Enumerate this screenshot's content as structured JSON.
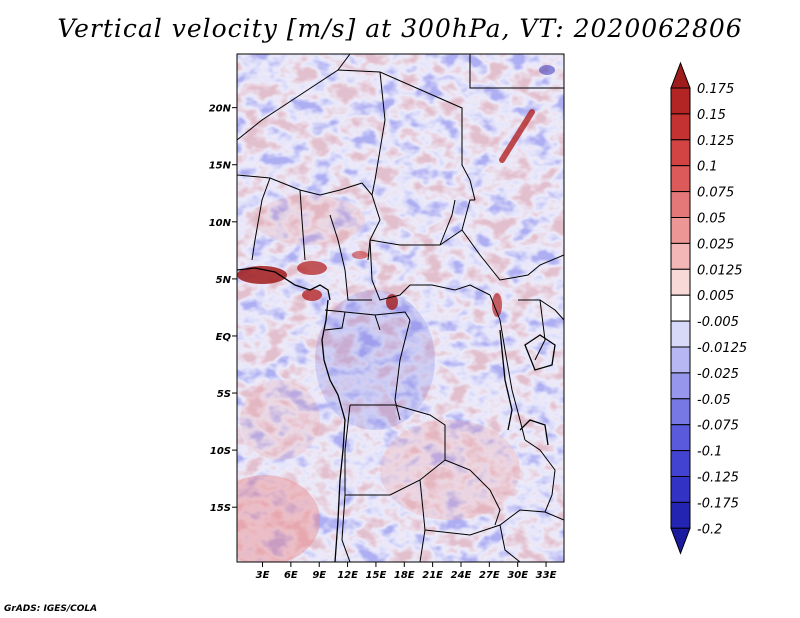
{
  "title": "Vertical velocity [m/s] at 300hPa, VT: 2020062806",
  "credit": "GrADS: IGES/COLA",
  "map": {
    "lat_labels": [
      "20N",
      "15N",
      "10N",
      "5N",
      "EQ",
      "5S",
      "10S",
      "15S"
    ],
    "lat_values": [
      20,
      15,
      10,
      5,
      0,
      -5,
      -10,
      -15
    ],
    "lon_labels": [
      "3E",
      "6E",
      "9E",
      "12E",
      "15E",
      "18E",
      "21E",
      "24E",
      "27E",
      "30E",
      "33E"
    ],
    "lon_values": [
      3,
      6,
      9,
      12,
      15,
      18,
      21,
      24,
      27,
      30,
      33
    ],
    "lon_range": [
      0.3,
      34.9
    ],
    "lat_range": [
      -19.8,
      24.7
    ]
  },
  "colorbar": {
    "labels": [
      "0.175",
      "0.15",
      "0.125",
      "0.1",
      "0.075",
      "0.05",
      "0.025",
      "0.0125",
      "0.005",
      "-0.005",
      "-0.0125",
      "-0.025",
      "-0.05",
      "-0.075",
      "-0.1",
      "-0.125",
      "-0.175",
      "-0.2"
    ],
    "colors": [
      "#a01b1b",
      "#b32424",
      "#c43232",
      "#d24343",
      "#dc5a5a",
      "#e47878",
      "#ec9696",
      "#f3b7b7",
      "#f9d8d8",
      "#ffffff",
      "#d8d8f9",
      "#b7b7f3",
      "#9696ec",
      "#7878e4",
      "#5a5adc",
      "#4343d2",
      "#3232c4",
      "#2424b3",
      "#1b1ba0"
    ]
  }
}
